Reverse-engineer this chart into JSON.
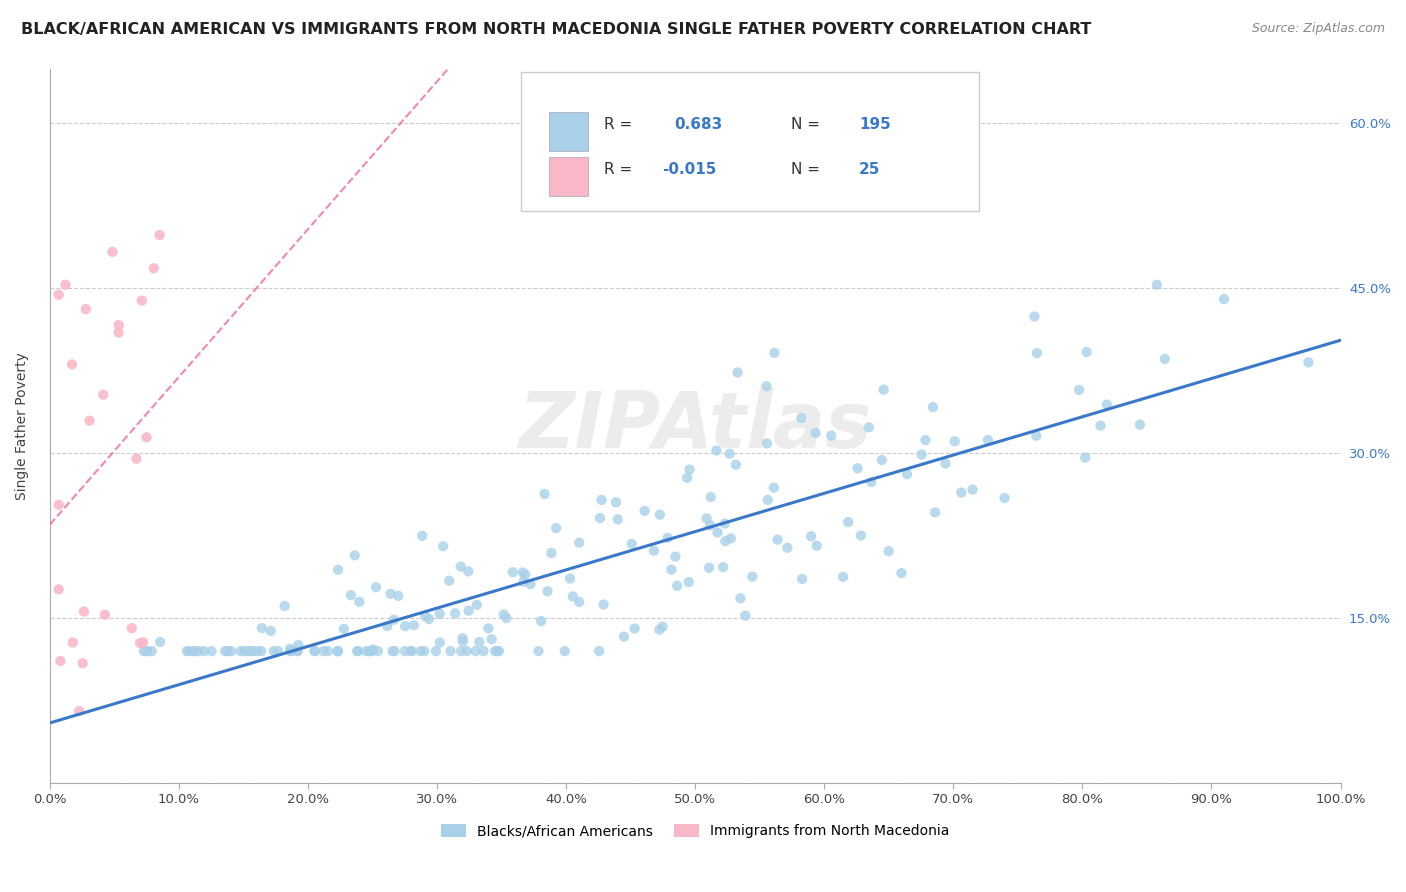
{
  "title": "BLACK/AFRICAN AMERICAN VS IMMIGRANTS FROM NORTH MACEDONIA SINGLE FATHER POVERTY CORRELATION CHART",
  "source": "Source: ZipAtlas.com",
  "ylabel": "Single Father Poverty",
  "watermark": "ZIPAtlas",
  "blue_R": 0.683,
  "blue_N": 195,
  "pink_R": -0.015,
  "pink_N": 25,
  "xlim": [
    0,
    1.0
  ],
  "ylim": [
    0,
    0.65
  ],
  "ytick_vals": [
    0.0,
    0.15,
    0.3,
    0.45,
    0.6
  ],
  "ytick_labels": [
    "",
    "15.0%",
    "30.0%",
    "45.0%",
    "60.0%"
  ],
  "xtick_vals": [
    0.0,
    0.1,
    0.2,
    0.3,
    0.4,
    0.5,
    0.6,
    0.7,
    0.8,
    0.9,
    1.0
  ],
  "xtick_labels": [
    "0.0%",
    "10.0%",
    "20.0%",
    "30.0%",
    "40.0%",
    "50.0%",
    "60.0%",
    "70.0%",
    "80.0%",
    "90.0%",
    "100.0%"
  ],
  "blue_color": "#a8d0e8",
  "pink_color": "#f9b8c8",
  "blue_line_color": "#3a78c9",
  "pink_line_color": "#f06090",
  "legend_blue_label": "Blacks/African Americans",
  "legend_pink_label": "Immigrants from North Macedonia",
  "title_fontsize": 11.5,
  "axis_label_fontsize": 10,
  "tick_fontsize": 9.5,
  "legend_fontsize": 11,
  "blue_seed": 42,
  "pink_seed": 7
}
